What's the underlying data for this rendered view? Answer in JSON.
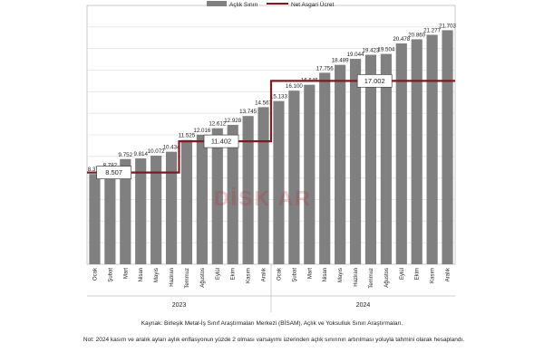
{
  "chart_data": {
    "type": "bar",
    "legend": {
      "position": "top",
      "items": [
        "Açlık Sınırı",
        "Net Asgari Ücret"
      ]
    },
    "series": [
      {
        "name": "Açlık Sınırı",
        "type": "bar",
        "values": [
          8372,
          8782,
          9752,
          9814,
          10072,
          10434,
          11525,
          12016,
          12612,
          12928,
          13745,
          14567,
          15133,
          16100,
          16646,
          17756,
          18489,
          19044,
          19423,
          19504,
          20478,
          20860,
          21277,
          21703
        ],
        "labels": [
          "8.372",
          "8.782",
          "9.752",
          "9.814",
          "10.072",
          "10.434",
          "11.525",
          "12.016",
          "12.612",
          "12.928",
          "13.745",
          "14.567",
          "15.133",
          "16.100",
          "16.646",
          "17.756",
          "18.489",
          "19.044",
          "19.423",
          "19.504",
          "20.478",
          "20.860",
          "21.277",
          "21.703"
        ],
        "color": "#808080"
      },
      {
        "name": "Net Asgari Ücret",
        "type": "step-line",
        "values": [
          8507,
          8507,
          8507,
          8507,
          8507,
          8507,
          11402,
          11402,
          11402,
          11402,
          11402,
          11402,
          17002,
          17002,
          17002,
          17002,
          17002,
          17002,
          17002,
          17002,
          17002,
          17002,
          17002,
          17002
        ],
        "callouts": [
          {
            "index": 1,
            "text": "8.507"
          },
          {
            "index": 8,
            "text": "11.402"
          },
          {
            "index": 18,
            "text": "17.002"
          }
        ],
        "color": "#7b1c23"
      }
    ],
    "categories": [
      "Ocak",
      "Şubat",
      "Mart",
      "Nisan",
      "Mayıs",
      "Haziran",
      "Temmuz",
      "Ağustos",
      "Eylül",
      "Ekim",
      "Kasım",
      "Aralık",
      "Ocak",
      "Şubat",
      "Mart",
      "Nisan",
      "Mayıs",
      "Haziran",
      "Temmuz",
      "Ağustos",
      "Eylül",
      "Ekim",
      "Kasım",
      "Aralık"
    ],
    "groups": [
      {
        "label": "2023",
        "start": 0,
        "end": 11
      },
      {
        "label": "2024",
        "start": 12,
        "end": 23
      }
    ],
    "ylim": [
      0,
      24000
    ],
    "grid": true
  },
  "watermark": "DİSK AR",
  "source_text": "Kaynak: Birleşik Metal-İş Sınıf Araştırmaları Merkezi (BİSAM), Açlık ve Yoksulluk Sınırı Araştırmaları.",
  "note_text": "Not: 2024 kasım ve aralık ayları aylık enflasyonun yüzde 2 olması varsayımı üzerinden açlık sınırının artırılması yoluyla tahmini olarak hesaplandı."
}
